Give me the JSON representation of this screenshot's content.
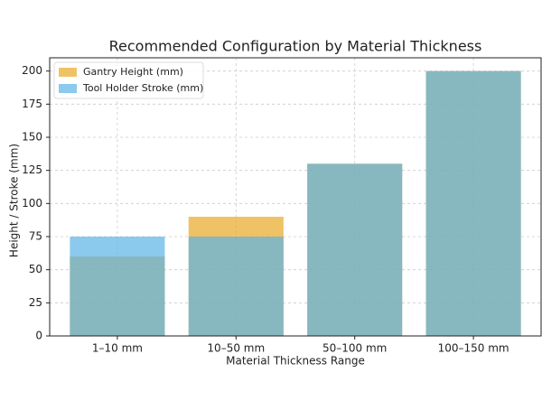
{
  "chart_data": {
    "type": "bar",
    "title": "Recommended Configuration by Material Thickness",
    "x_label": "Material Thickness Range",
    "y_label": "Height / Stroke (mm)",
    "categories": [
      "1–10 mm",
      "10–50 mm",
      "50–100 mm",
      "100–150 mm"
    ],
    "series": [
      {
        "name": "Gantry Height (mm)",
        "color": "#e9a825",
        "values": [
          60,
          90,
          130,
          200
        ]
      },
      {
        "name": "Tool Holder Stroke (mm)",
        "color": "#5ab4e5",
        "values": [
          75,
          75,
          130,
          200
        ]
      }
    ],
    "ylim": [
      0,
      210
    ],
    "yticks": [
      0,
      25,
      50,
      75,
      100,
      125,
      150,
      175,
      200
    ],
    "grid": true,
    "legend": "upper left"
  }
}
